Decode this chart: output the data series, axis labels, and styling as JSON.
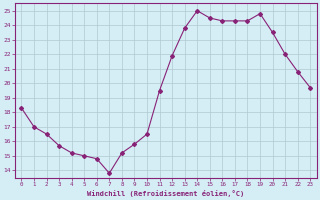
{
  "x": [
    0,
    1,
    2,
    3,
    4,
    5,
    6,
    7,
    8,
    9,
    10,
    11,
    12,
    13,
    14,
    15,
    16,
    17,
    18,
    19,
    20,
    21,
    22,
    23
  ],
  "y": [
    18.3,
    17.0,
    16.5,
    15.7,
    15.2,
    15.0,
    14.8,
    13.8,
    15.2,
    15.8,
    16.5,
    19.5,
    21.9,
    23.8,
    25.0,
    24.5,
    24.3,
    24.3,
    24.3,
    24.8,
    23.5,
    22.0,
    20.8,
    19.7
  ],
  "line_color": "#882277",
  "marker": "D",
  "markersize": 2.0,
  "linewidth": 0.8,
  "xlabel": "Windchill (Refroidissement éolien,°C)",
  "ylabel": "",
  "xlim": [
    -0.5,
    23.5
  ],
  "ylim": [
    13.5,
    25.5
  ],
  "yticks": [
    14,
    15,
    16,
    17,
    18,
    19,
    20,
    21,
    22,
    23,
    24,
    25
  ],
  "xticks": [
    0,
    1,
    2,
    3,
    4,
    5,
    6,
    7,
    8,
    9,
    10,
    11,
    12,
    13,
    14,
    15,
    16,
    17,
    18,
    19,
    20,
    21,
    22,
    23
  ],
  "bg_color": "#d5eef5",
  "grid_color": "#b0c8d0",
  "text_color": "#882277",
  "tick_color": "#882277",
  "spine_color": "#882277"
}
